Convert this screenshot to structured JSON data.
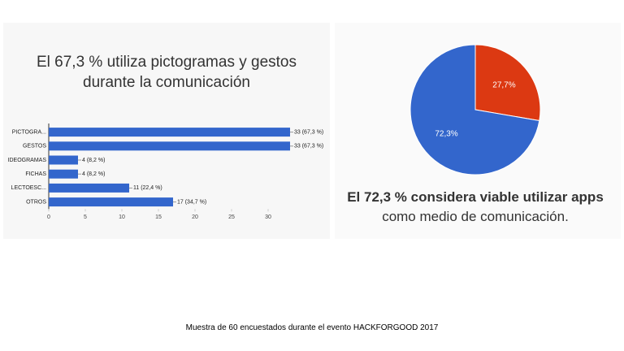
{
  "chart_data": [
    {
      "type": "bar",
      "orientation": "horizontal",
      "title": "El 67,3 % utiliza pictogramas y gestos durante la comunicación",
      "categories": [
        "PICTOGRA...",
        "GESTOS",
        "IDEOGRAMAS",
        "FICHAS",
        "LECTOESC...",
        "OTROS"
      ],
      "values": [
        33,
        33,
        4,
        4,
        11,
        17
      ],
      "value_labels": [
        "33 (67,3 %)",
        "33 (67,3 %)",
        "4 (8,2 %)",
        "4 (8,2 %)",
        "11 (22,4 %)",
        "17 (34,7 %)"
      ],
      "color": "#3366cc",
      "xlim": [
        0,
        35
      ],
      "xticks": [
        0,
        5,
        10,
        15,
        20,
        25,
        30
      ]
    },
    {
      "type": "pie",
      "title": "El 72,3 % considera viable utilizar apps",
      "subtitle": "como medio de comunicación.",
      "values": [
        27.7,
        72.3
      ],
      "value_labels": [
        "27,7%",
        "72,3%"
      ],
      "colors": [
        "#dc3912",
        "#3366cc"
      ]
    }
  ],
  "footer": "Muestra de 60 encuestados durante el evento HACKFORGOOD 2017"
}
